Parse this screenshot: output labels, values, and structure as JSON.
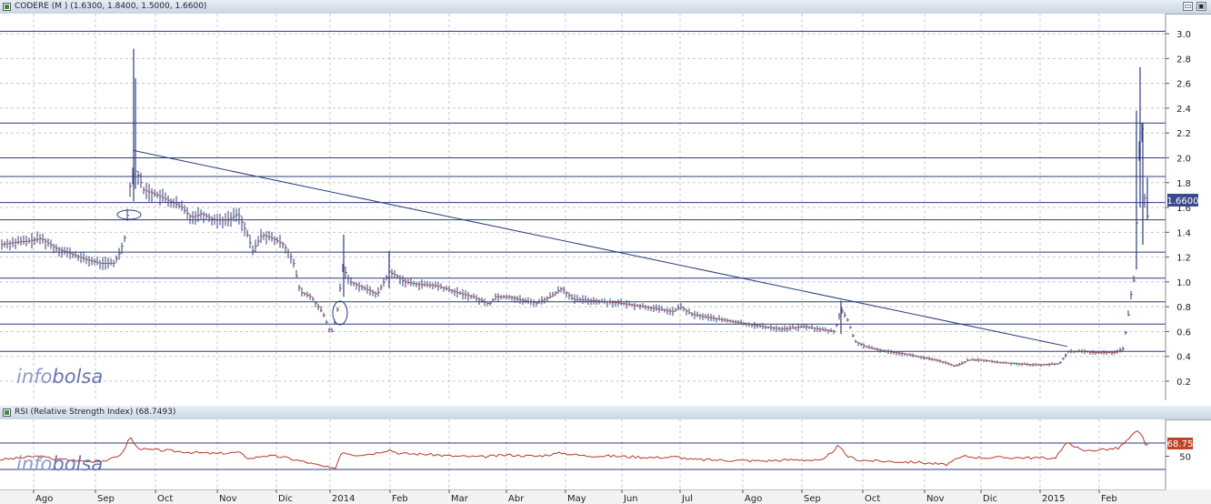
{
  "main_panel": {
    "title": "CODERE (M ) (1.6300, 1.8400, 1.5000, 1.6600)",
    "last_price_label": "1.6600",
    "watermark_prefix": "info",
    "watermark_suffix": "bolsa"
  },
  "rsi_panel": {
    "title": "RSI (Relative Strength Index) (68.7493)",
    "last_value_label": "68.75",
    "watermark_prefix": "info",
    "watermark_suffix": "bolsa"
  },
  "window_buttons": {
    "restore": "▭",
    "maximize": "▣"
  },
  "colors": {
    "price_bar": "#2e3e7e",
    "price_tick": "#b23a2a",
    "trend_line": "#2b3b80",
    "rsi_line": "#b23a2a",
    "last_price_badge": "#3a4a8a",
    "rsi_badge": "#c0432a",
    "header_bg": "#d3dde8"
  },
  "chart_data": [
    {
      "type": "bar",
      "title": "CODERE (M ) (1.6300, 1.8400, 1.5000, 1.6600)",
      "subtype": "OHLC",
      "ylim": [
        0.1,
        3.1
      ],
      "y_ticks": [
        0.2,
        0.4,
        0.6,
        0.8,
        1.0,
        1.2,
        1.4,
        1.6,
        1.8,
        2.0,
        2.2,
        2.4,
        2.6,
        2.8,
        3.0
      ],
      "y_tick_labels": [
        "0.2",
        "0.4",
        "0.6",
        "0.8",
        "1.0",
        "1.2",
        "1.4",
        "1.6",
        "1.8",
        "2.0",
        "2.2",
        "2.4",
        "2.6",
        "2.8",
        "3.0"
      ],
      "x_tick_labels": [
        "Ago",
        "Sep",
        "Oct",
        "Nov",
        "Dic",
        "2014",
        "Feb",
        "Mar",
        "Abr",
        "May",
        "Jun",
        "Jul",
        "Ago",
        "Sep",
        "Oct",
        "Nov",
        "Dic",
        "2015",
        "Feb"
      ],
      "grid": true,
      "horizontal_levels": [
        0.44,
        0.66,
        0.84,
        1.03,
        1.24,
        1.5,
        1.64,
        1.85,
        2.0,
        2.28,
        3.02
      ],
      "trendline": {
        "from": [
          "Sep",
          2.06
        ],
        "to": [
          "2015",
          0.48
        ]
      },
      "price_path": [
        [
          0,
          1.3
        ],
        [
          18,
          1.32
        ],
        [
          33,
          1.33
        ],
        [
          45,
          1.35
        ],
        [
          62,
          1.27
        ],
        [
          80,
          1.22
        ],
        [
          95,
          1.18
        ],
        [
          110,
          1.15
        ],
        [
          125,
          1.15
        ],
        [
          132,
          1.24
        ],
        [
          138,
          1.38
        ],
        [
          144,
          1.85
        ],
        [
          150,
          1.9
        ],
        [
          158,
          1.74
        ],
        [
          170,
          1.71
        ],
        [
          190,
          1.64
        ],
        [
          200,
          1.6
        ],
        [
          210,
          1.52
        ],
        [
          222,
          1.55
        ],
        [
          235,
          1.5
        ],
        [
          250,
          1.5
        ],
        [
          262,
          1.55
        ],
        [
          272,
          1.38
        ],
        [
          278,
          1.25
        ],
        [
          288,
          1.38
        ],
        [
          300,
          1.35
        ],
        [
          312,
          1.3
        ],
        [
          322,
          1.18
        ],
        [
          330,
          0.92
        ],
        [
          342,
          0.88
        ],
        [
          355,
          0.75
        ],
        [
          364,
          0.58
        ],
        [
          370,
          0.72
        ],
        [
          377,
          1.12
        ],
        [
          385,
          1.0
        ],
        [
          400,
          0.95
        ],
        [
          415,
          0.9
        ],
        [
          428,
          1.08
        ],
        [
          436,
          1.05
        ],
        [
          445,
          1.0
        ],
        [
          460,
          0.98
        ],
        [
          480,
          0.97
        ],
        [
          500,
          0.92
        ],
        [
          520,
          0.88
        ],
        [
          538,
          0.82
        ],
        [
          545,
          0.88
        ],
        [
          560,
          0.88
        ],
        [
          575,
          0.85
        ],
        [
          590,
          0.83
        ],
        [
          605,
          0.88
        ],
        [
          618,
          0.95
        ],
        [
          630,
          0.86
        ],
        [
          650,
          0.85
        ],
        [
          680,
          0.83
        ],
        [
          700,
          0.81
        ],
        [
          725,
          0.78
        ],
        [
          740,
          0.76
        ],
        [
          748,
          0.8
        ],
        [
          760,
          0.74
        ],
        [
          790,
          0.7
        ],
        [
          815,
          0.67
        ],
        [
          838,
          0.64
        ],
        [
          860,
          0.62
        ],
        [
          885,
          0.64
        ],
        [
          900,
          0.62
        ],
        [
          918,
          0.6
        ],
        [
          925,
          0.78
        ],
        [
          933,
          0.68
        ],
        [
          940,
          0.52
        ],
        [
          955,
          0.47
        ],
        [
          975,
          0.44
        ],
        [
          995,
          0.42
        ],
        [
          1015,
          0.39
        ],
        [
          1035,
          0.36
        ],
        [
          1050,
          0.32
        ],
        [
          1065,
          0.37
        ],
        [
          1080,
          0.37
        ],
        [
          1100,
          0.35
        ],
        [
          1120,
          0.34
        ],
        [
          1140,
          0.33
        ],
        [
          1165,
          0.34
        ],
        [
          1175,
          0.44
        ],
        [
          1190,
          0.44
        ],
        [
          1205,
          0.43
        ],
        [
          1225,
          0.43
        ],
        [
          1235,
          0.46
        ],
        [
          1240,
          0.68
        ],
        [
          1244,
          0.9
        ],
        [
          1248,
          1.05
        ],
        [
          1252,
          1.9
        ],
        [
          1255,
          2.35
        ],
        [
          1258,
          2.0
        ],
        [
          1260,
          1.35
        ],
        [
          1263,
          1.62
        ]
      ],
      "spikes": [
        {
          "x": 147,
          "high": 2.88,
          "low": 1.65
        },
        {
          "x": 149,
          "high": 2.64,
          "low": 1.75
        },
        {
          "x": 378,
          "high": 1.38,
          "low": 0.88
        },
        {
          "x": 428,
          "high": 1.25,
          "low": 0.95
        },
        {
          "x": 925,
          "high": 0.85,
          "low": 0.58
        },
        {
          "x": 1250,
          "high": 2.38,
          "low": 1.1
        },
        {
          "x": 1254,
          "high": 2.73,
          "low": 1.6
        },
        {
          "x": 1257,
          "high": 2.28,
          "low": 1.3
        },
        {
          "x": 1262,
          "high": 1.84,
          "low": 1.5
        }
      ],
      "last_value": 1.66
    },
    {
      "type": "line",
      "title": "RSI (Relative Strength Index) (68.7493)",
      "ylim": [
        0,
        100
      ],
      "y_ticks": [
        50
      ],
      "y_tick_labels": [
        "50"
      ],
      "horizontal_levels": [
        30,
        70
      ],
      "series": [
        {
          "values": [
            [
              0,
              45
            ],
            [
              20,
              47
            ],
            [
              40,
              50
            ],
            [
              60,
              46
            ],
            [
              80,
              44
            ],
            [
              100,
              42
            ],
            [
              120,
              44
            ],
            [
              135,
              55
            ],
            [
              143,
              80
            ],
            [
              150,
              64
            ],
            [
              160,
              60
            ],
            [
              180,
              59
            ],
            [
              200,
              57
            ],
            [
              220,
              55
            ],
            [
              240,
              54
            ],
            [
              262,
              56
            ],
            [
              275,
              46
            ],
            [
              290,
              51
            ],
            [
              310,
              49
            ],
            [
              330,
              43
            ],
            [
              345,
              38
            ],
            [
              360,
              33
            ],
            [
              368,
              30
            ],
            [
              376,
              57
            ],
            [
              390,
              52
            ],
            [
              410,
              54
            ],
            [
              428,
              60
            ],
            [
              440,
              54
            ],
            [
              470,
              53
            ],
            [
              500,
              50
            ],
            [
              530,
              49
            ],
            [
              560,
              52
            ],
            [
              590,
              50
            ],
            [
              618,
              55
            ],
            [
              640,
              51
            ],
            [
              680,
              50
            ],
            [
              720,
              48
            ],
            [
              746,
              49
            ],
            [
              760,
              45
            ],
            [
              800,
              44
            ],
            [
              840,
              43
            ],
            [
              880,
              45
            ],
            [
              905,
              43
            ],
            [
              922,
              66
            ],
            [
              932,
              50
            ],
            [
              945,
              44
            ],
            [
              980,
              42
            ],
            [
              1010,
              41
            ],
            [
              1040,
              37
            ],
            [
              1060,
              50
            ],
            [
              1080,
              48
            ],
            [
              1120,
              48
            ],
            [
              1160,
              47
            ],
            [
              1175,
              72
            ],
            [
              1190,
              58
            ],
            [
              1210,
              60
            ],
            [
              1230,
              62
            ],
            [
              1240,
              74
            ],
            [
              1250,
              88
            ],
            [
              1256,
              82
            ],
            [
              1260,
              68
            ],
            [
              1265,
              69
            ]
          ]
        }
      ],
      "last_value": 68.75
    }
  ]
}
